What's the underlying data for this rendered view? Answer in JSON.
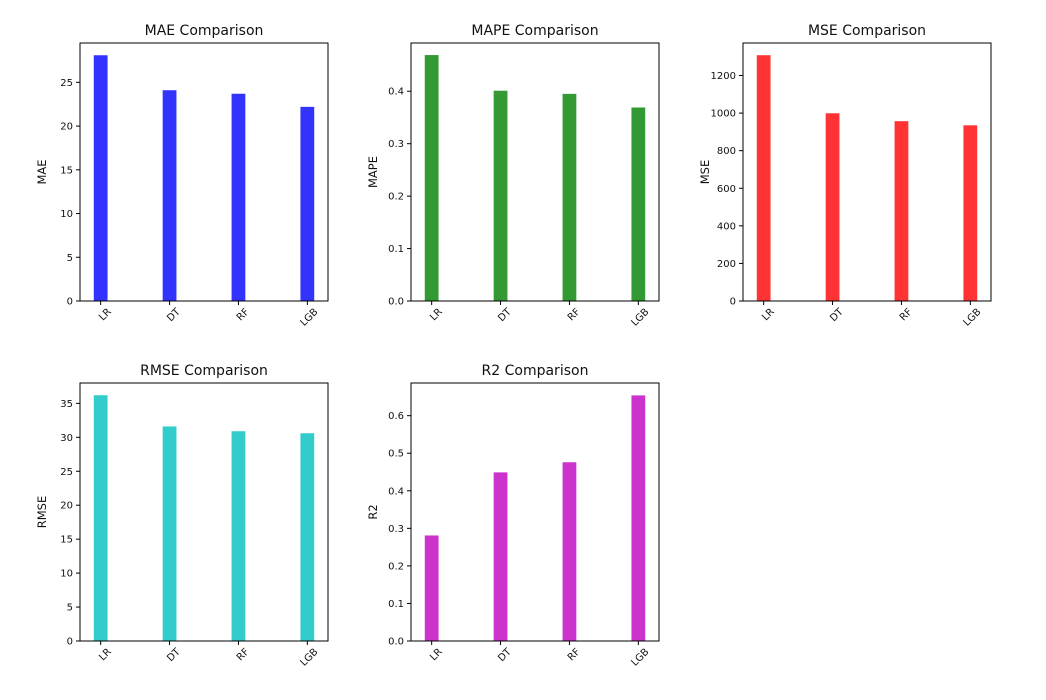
{
  "figure": {
    "background": "#ffffff"
  },
  "chart_data": [
    {
      "type": "bar",
      "title": "MAE Comparison",
      "xlabel": "",
      "ylabel": "MAE",
      "categories": [
        "LR",
        "DT",
        "RF",
        "LGB"
      ],
      "values": [
        28.1,
        24.1,
        23.7,
        22.2
      ],
      "ylim": [
        0,
        29.5
      ],
      "yticks": [
        0,
        5,
        10,
        15,
        20,
        25
      ],
      "color": "#3333ff",
      "grid": false
    },
    {
      "type": "bar",
      "title": "MAPE Comparison",
      "xlabel": "",
      "ylabel": "MAPE",
      "categories": [
        "LR",
        "DT",
        "RF",
        "LGB"
      ],
      "values": [
        0.469,
        0.401,
        0.395,
        0.369
      ],
      "ylim": [
        0,
        0.492
      ],
      "yticks": [
        0.0,
        0.1,
        0.2,
        0.3,
        0.4
      ],
      "tick_decimals": 1,
      "color": "#339933",
      "grid": false
    },
    {
      "type": "bar",
      "title": "MSE Comparison",
      "xlabel": "",
      "ylabel": "MSE",
      "categories": [
        "LR",
        "DT",
        "RF",
        "LGB"
      ],
      "values": [
        1308,
        999,
        957,
        935
      ],
      "ylim": [
        0,
        1373
      ],
      "yticks": [
        0,
        200,
        400,
        600,
        800,
        1000,
        1200
      ],
      "color": "#ff3333",
      "grid": false
    },
    {
      "type": "bar",
      "title": "RMSE Comparison",
      "xlabel": "",
      "ylabel": "RMSE",
      "categories": [
        "LR",
        "DT",
        "RF",
        "LGB"
      ],
      "values": [
        36.2,
        31.6,
        30.9,
        30.6
      ],
      "ylim": [
        0,
        38.0
      ],
      "yticks": [
        0,
        5,
        10,
        15,
        20,
        25,
        30,
        35
      ],
      "color": "#33cccc",
      "grid": false
    },
    {
      "type": "bar",
      "title": "R2 Comparison",
      "xlabel": "",
      "ylabel": "R2",
      "categories": [
        "LR",
        "DT",
        "RF",
        "LGB"
      ],
      "values": [
        0.281,
        0.449,
        0.476,
        0.654
      ],
      "ylim": [
        0,
        0.687
      ],
      "yticks": [
        0.0,
        0.1,
        0.2,
        0.3,
        0.4,
        0.5,
        0.6
      ],
      "tick_decimals": 1,
      "color": "#cc33cc",
      "grid": false
    }
  ]
}
